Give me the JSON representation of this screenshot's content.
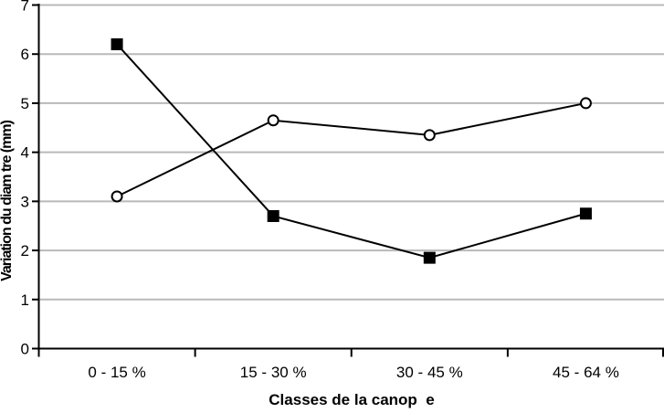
{
  "chart_data": {
    "type": "line",
    "title": "",
    "xlabel": "Classes de la canop  e",
    "ylabel": "Variation du diam tre (mm)",
    "categories": [
      "0 - 15 %",
      "15 - 30 %",
      "30 - 45 %",
      "45 - 64 %"
    ],
    "series": [
      {
        "name": "filled-squares",
        "marker": "square",
        "values": [
          6.2,
          2.7,
          1.85,
          2.75
        ]
      },
      {
        "name": "open-circles",
        "marker": "circle",
        "values": [
          3.1,
          4.65,
          4.35,
          5.0
        ]
      }
    ],
    "ylim": [
      0,
      7
    ],
    "yticks": [
      0,
      1,
      2,
      3,
      4,
      5,
      6,
      7
    ],
    "grid": true,
    "legend": "none",
    "colors": {
      "background": "#ffffff",
      "line": "#000000",
      "axis": "#000000",
      "grid": "#b9b9b9",
      "text": "#000000",
      "marker_fill_square": "#000000",
      "marker_fill_circle": "#ffffff"
    }
  }
}
